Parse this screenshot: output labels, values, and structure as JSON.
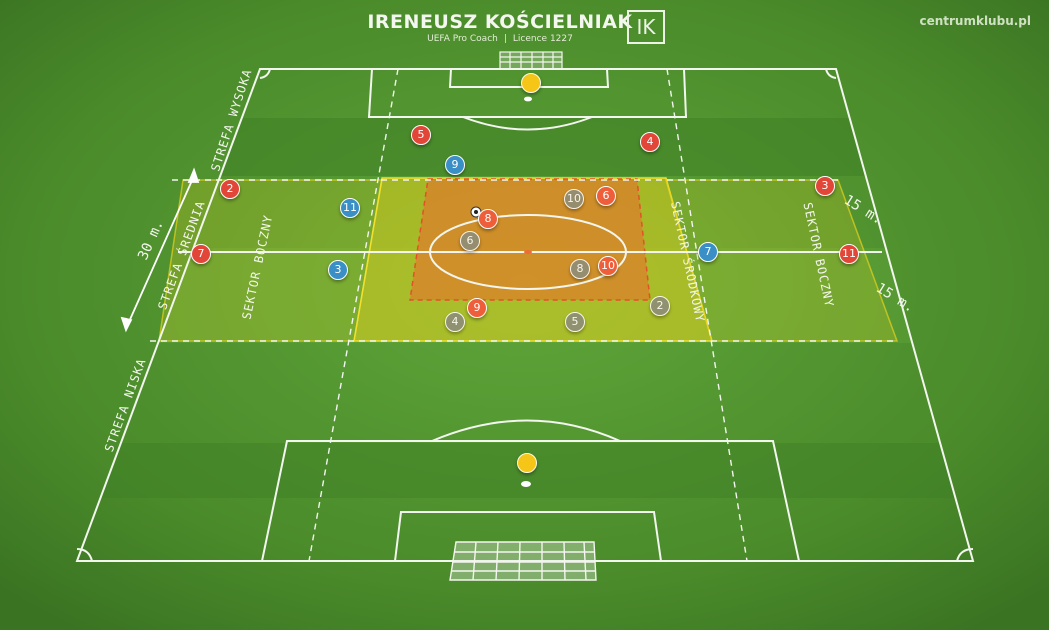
{
  "header": {
    "title": "IRENEUSZ KOŚCIELNIAK",
    "subtitle_role": "UEFA Pro Coach",
    "subtitle_sep": "|",
    "subtitle_licence": "Licence 1227",
    "logo_text": "IK",
    "site": "centrumklubu.pl"
  },
  "zones": {
    "high": "STREFA WYSOKA",
    "mid": "STREFA ŚREDNIA",
    "low": "STREFA NISKA",
    "side_left": "SEKTOR BOCZNY",
    "center": "SEKTOR ŚRODKOWY",
    "side_right": "SEKTOR BOCZNY"
  },
  "measures": {
    "mid_height": "30 m.",
    "sector_top": "15 m.",
    "sector_bottom": "15 m."
  },
  "colors": {
    "red_team": "#e24638",
    "blue_team": "#3a8fc6",
    "goalkeeper": "#f5c518",
    "orange_team": "#ee5e3a",
    "shadow_team": "#8e8d78",
    "zone_yellow": "#e6d21e",
    "zone_orange": "#ee6a2a"
  },
  "players": {
    "red": [
      "5",
      "4",
      "2",
      "3",
      "7",
      "11"
    ],
    "blue": [
      "9",
      "11",
      "3",
      "7"
    ],
    "orange": [
      "6",
      "8",
      "10",
      "9"
    ],
    "grey": [
      "10",
      "6",
      "8",
      "4",
      "5",
      "2"
    ]
  }
}
